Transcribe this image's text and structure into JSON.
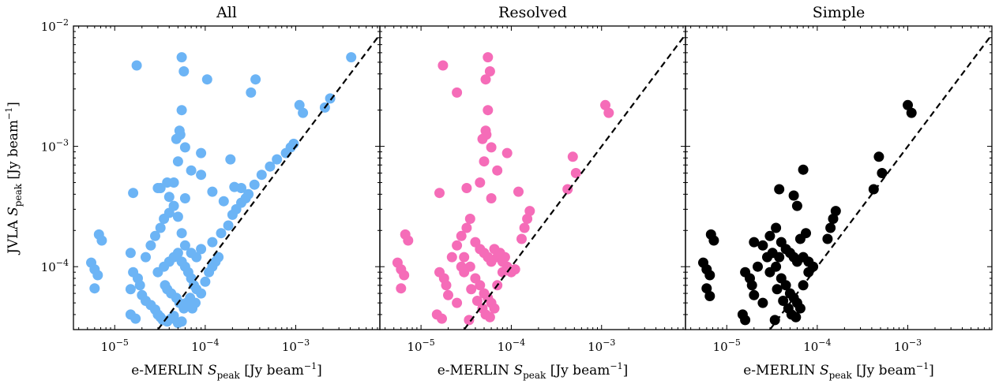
{
  "figure": {
    "x_label": {
      "prefix": "e-MERLIN ",
      "var": "S",
      "sub": "peak",
      "units": " [Jy beam",
      "exp": "−1",
      "close": "]"
    },
    "y_label": {
      "prefix": "JVLA ",
      "var": "S",
      "sub": "peak",
      "units": " [Jy beam",
      "exp": "−1",
      "close": "]"
    },
    "x_ticks": [
      {
        "value": 1e-05,
        "base": "10",
        "exp": "−5"
      },
      {
        "value": 0.0001,
        "base": "10",
        "exp": "−4"
      },
      {
        "value": 0.001,
        "base": "10",
        "exp": "−3"
      }
    ],
    "y_ticks": [
      {
        "value": 0.0001,
        "base": "10",
        "exp": "−4"
      },
      {
        "value": 0.001,
        "base": "10",
        "exp": "−3"
      },
      {
        "value": 0.01,
        "base": "10",
        "exp": "−2"
      }
    ]
  },
  "chart_data": [
    {
      "type": "scatter",
      "title": "All",
      "color": "#6cb4f5",
      "x_scale": "log",
      "y_scale": "log",
      "xlim": [
        3.5e-06,
        0.0085
      ],
      "ylim": [
        3e-05,
        0.01
      ],
      "reference_line": "y = x",
      "points": [
        [
          1.75e-05,
          0.0047
        ],
        [
          5.5e-05,
          0.0055
        ],
        [
          5.8e-05,
          0.0042
        ],
        [
          0.000105,
          0.0036
        ],
        [
          0.00036,
          0.0036
        ],
        [
          0.00032,
          0.0028
        ],
        [
          0.0041,
          0.0055
        ],
        [
          0.0024,
          0.0025
        ],
        [
          0.0011,
          0.0022
        ],
        [
          0.0012,
          0.0019
        ],
        [
          0.0021,
          0.0021
        ],
        [
          5.5e-05,
          0.002
        ],
        [
          5.2e-05,
          0.00135
        ],
        [
          5.3e-05,
          0.00125
        ],
        [
          4.8e-05,
          0.00115
        ],
        [
          6e-05,
          0.00098
        ],
        [
          9e-05,
          0.00088
        ],
        [
          0.00019,
          0.00078
        ],
        [
          0.00095,
          0.00105
        ],
        [
          0.00088,
          0.00098
        ],
        [
          0.00078,
          0.00088
        ],
        [
          0.00062,
          0.00078
        ],
        [
          0.00052,
          0.00068
        ],
        [
          5e-05,
          0.00075
        ],
        [
          7e-05,
          0.00063
        ],
        [
          9e-05,
          0.00058
        ],
        [
          0.00042,
          0.00058
        ],
        [
          0.00035,
          0.00048
        ],
        [
          0.00025,
          0.00045
        ],
        [
          0.00021,
          0.00046
        ],
        [
          0.00016,
          0.00035
        ],
        [
          0.00012,
          0.00042
        ],
        [
          3.8e-05,
          0.0005
        ],
        [
          4.5e-05,
          0.0005
        ],
        [
          3.2e-05,
          0.00045
        ],
        [
          1.6e-05,
          0.00041
        ],
        [
          4e-05,
          0.00038
        ],
        [
          6e-05,
          0.00037
        ],
        [
          3e-05,
          0.00045
        ],
        [
          6.7e-06,
          0.000185
        ],
        [
          7.2e-06,
          0.000165
        ],
        [
          5.5e-06,
          0.000108
        ],
        [
          6e-06,
          9.5e-05
        ],
        [
          6.5e-06,
          8.5e-05
        ],
        [
          6e-06,
          6.6e-05
        ],
        [
          1.5e-05,
          0.00013
        ],
        [
          2.2e-05,
          0.00012
        ],
        [
          2.5e-05,
          0.00015
        ],
        [
          2.8e-05,
          0.00018
        ],
        [
          3.2e-05,
          0.00021
        ],
        [
          3.5e-05,
          0.00025
        ],
        [
          4e-05,
          0.00028
        ],
        [
          4.5e-05,
          0.00032
        ],
        [
          5e-05,
          0.00026
        ],
        [
          5.5e-05,
          0.00019
        ],
        [
          6e-05,
          0.00015
        ],
        [
          7e-05,
          0.00013
        ],
        [
          8e-05,
          0.00012
        ],
        [
          9e-05,
          0.00014
        ],
        [
          0.00012,
          0.00016
        ],
        [
          0.00015,
          0.00019
        ],
        [
          0.00018,
          0.00022
        ],
        [
          0.0002,
          0.00027
        ],
        [
          0.00022,
          0.0003
        ],
        [
          0.00025,
          0.00034
        ],
        [
          0.00028,
          0.00037
        ],
        [
          0.0003,
          0.0004
        ],
        [
          1.6e-05,
          9e-05
        ],
        [
          1.8e-05,
          8e-05
        ],
        [
          1.9e-05,
          7e-05
        ],
        [
          1.5e-05,
          6.5e-05
        ],
        [
          2e-05,
          5.8e-05
        ],
        [
          2.2e-05,
          5.2e-05
        ],
        [
          2.5e-05,
          4.8e-05
        ],
        [
          2.8e-05,
          4.4e-05
        ],
        [
          3e-05,
          4e-05
        ],
        [
          3.2e-05,
          3.8e-05
        ],
        [
          3.4e-05,
          3.6e-05
        ],
        [
          3.8e-05,
          3.5e-05
        ],
        [
          4.2e-05,
          3.7e-05
        ],
        [
          4.5e-05,
          3.9e-05
        ],
        [
          5e-05,
          3.4e-05
        ],
        [
          5.5e-05,
          3.5e-05
        ],
        [
          1.5e-05,
          4e-05
        ],
        [
          1.7e-05,
          3.7e-05
        ],
        [
          3e-05,
          9e-05
        ],
        [
          3.5e-05,
          0.0001
        ],
        [
          4e-05,
          0.00011
        ],
        [
          4.5e-05,
          0.00012
        ],
        [
          5e-05,
          0.00013
        ],
        [
          5.5e-05,
          0.00011
        ],
        [
          6e-05,
          0.0001
        ],
        [
          6.5e-05,
          9e-05
        ],
        [
          7e-05,
          8e-05
        ],
        [
          7.5e-05,
          7e-05
        ],
        [
          8e-05,
          6.5e-05
        ],
        [
          9e-05,
          6e-05
        ],
        [
          0.0001,
          7.5e-05
        ],
        [
          0.00011,
          9e-05
        ],
        [
          0.00012,
          0.0001
        ],
        [
          0.00013,
          0.00011
        ],
        [
          0.00014,
          0.00012
        ],
        [
          3.6e-05,
          7e-05
        ],
        [
          3.8e-05,
          6.5e-05
        ],
        [
          4.2e-05,
          6e-05
        ],
        [
          4.8e-05,
          5.5e-05
        ],
        [
          5.2e-05,
          5e-05
        ],
        [
          5.8e-05,
          4.5e-05
        ],
        [
          6.2e-05,
          5e-05
        ],
        [
          6.8e-05,
          5.5e-05
        ],
        [
          7.2e-05,
          4.5e-05
        ],
        [
          7.8e-05,
          5e-05
        ]
      ]
    },
    {
      "type": "scatter",
      "title": "Resolved",
      "color": "#f56cb8",
      "x_scale": "log",
      "y_scale": "log",
      "xlim": [
        3.5e-06,
        0.0085
      ],
      "ylim": [
        3e-05,
        0.01
      ],
      "reference_line": "y = x",
      "points": [
        [
          1.75e-05,
          0.0047
        ],
        [
          5.5e-05,
          0.0055
        ],
        [
          5.8e-05,
          0.0042
        ],
        [
          5.2e-05,
          0.0036
        ],
        [
          2.5e-05,
          0.0028
        ],
        [
          0.0011,
          0.0022
        ],
        [
          0.0012,
          0.0019
        ],
        [
          5.5e-05,
          0.002
        ],
        [
          5.2e-05,
          0.00135
        ],
        [
          5.3e-05,
          0.00125
        ],
        [
          4.8e-05,
          0.00115
        ],
        [
          6e-05,
          0.00098
        ],
        [
          9e-05,
          0.00088
        ],
        [
          0.00048,
          0.00082
        ],
        [
          0.00052,
          0.0006
        ],
        [
          0.00042,
          0.00044
        ],
        [
          0.00012,
          0.00042
        ],
        [
          5e-05,
          0.00075
        ],
        [
          7e-05,
          0.00063
        ],
        [
          4.5e-05,
          0.0005
        ],
        [
          3.2e-05,
          0.00045
        ],
        [
          1.6e-05,
          0.00041
        ],
        [
          6e-05,
          0.00037
        ],
        [
          0.00016,
          0.00029
        ],
        [
          0.00015,
          0.00025
        ],
        [
          0.00014,
          0.00021
        ],
        [
          0.00013,
          0.00017
        ],
        [
          6.7e-06,
          0.000185
        ],
        [
          7.2e-06,
          0.000165
        ],
        [
          5.5e-06,
          0.000108
        ],
        [
          6e-06,
          9.5e-05
        ],
        [
          6.5e-06,
          8.5e-05
        ],
        [
          6e-06,
          6.6e-05
        ],
        [
          2.5e-05,
          0.00015
        ],
        [
          2.2e-05,
          0.00012
        ],
        [
          2.8e-05,
          0.00018
        ],
        [
          3.2e-05,
          0.00021
        ],
        [
          3.5e-05,
          0.00025
        ],
        [
          4e-05,
          0.00016
        ],
        [
          4.5e-05,
          0.00014
        ],
        [
          5e-05,
          0.00013
        ],
        [
          5.5e-05,
          0.00012
        ],
        [
          6e-05,
          0.00011
        ],
        [
          7e-05,
          0.00012
        ],
        [
          8e-05,
          0.00011
        ],
        [
          9e-05,
          0.0001
        ],
        [
          0.0001,
          9e-05
        ],
        [
          0.00011,
          9.5e-05
        ],
        [
          1.6e-05,
          9e-05
        ],
        [
          1.8e-05,
          8e-05
        ],
        [
          1.9e-05,
          7e-05
        ],
        [
          1.5e-05,
          4e-05
        ],
        [
          1.7e-05,
          3.7e-05
        ],
        [
          2e-05,
          5.8e-05
        ],
        [
          2.5e-05,
          5e-05
        ],
        [
          3e-05,
          9e-05
        ],
        [
          3.5e-05,
          0.0001
        ],
        [
          4e-05,
          8e-05
        ],
        [
          4.5e-05,
          7e-05
        ],
        [
          5e-05,
          6e-05
        ],
        [
          5.5e-05,
          5.5e-05
        ],
        [
          6e-05,
          5e-05
        ],
        [
          6.5e-05,
          4.5e-05
        ],
        [
          7e-05,
          7e-05
        ],
        [
          8e-05,
          9e-05
        ],
        [
          3.6e-05,
          6.5e-05
        ],
        [
          4.2e-05,
          5.2e-05
        ],
        [
          4.8e-05,
          4.5e-05
        ],
        [
          5.2e-05,
          4e-05
        ],
        [
          5.8e-05,
          3.8e-05
        ],
        [
          3.4e-05,
          3.6e-05
        ],
        [
          9e-05,
          9.5e-05
        ],
        [
          8.5e-05,
          0.00012
        ],
        [
          7.5e-05,
          0.00013
        ],
        [
          6.5e-05,
          0.00014
        ],
        [
          3e-05,
          0.00012
        ],
        [
          2.8e-05,
          0.0001
        ]
      ]
    },
    {
      "type": "scatter",
      "title": "Simple",
      "color": "#000000",
      "x_scale": "log",
      "y_scale": "log",
      "xlim": [
        3.5e-06,
        0.0085
      ],
      "ylim": [
        3e-05,
        0.01
      ],
      "reference_line": "y = x",
      "points": [
        [
          0.001,
          0.0022
        ],
        [
          0.0011,
          0.0019
        ],
        [
          0.00048,
          0.00082
        ],
        [
          0.00052,
          0.0006
        ],
        [
          0.00042,
          0.00044
        ],
        [
          7e-05,
          0.00064
        ],
        [
          3.8e-05,
          0.00044
        ],
        [
          5.5e-05,
          0.00039
        ],
        [
          6e-05,
          0.00032
        ],
        [
          0.00016,
          0.00029
        ],
        [
          0.00015,
          0.00025
        ],
        [
          0.00014,
          0.00021
        ],
        [
          0.00013,
          0.00017
        ],
        [
          6.7e-06,
          0.000185
        ],
        [
          7.2e-06,
          0.000165
        ],
        [
          5.5e-06,
          0.000108
        ],
        [
          6e-06,
          9.5e-05
        ],
        [
          6.5e-06,
          8.5e-05
        ],
        [
          6e-06,
          6.6e-05
        ],
        [
          6.5e-06,
          5.7e-05
        ],
        [
          2e-05,
          0.00016
        ],
        [
          2.5e-05,
          0.00015
        ],
        [
          3e-05,
          0.00018
        ],
        [
          3.5e-05,
          0.00021
        ],
        [
          4e-05,
          0.00016
        ],
        [
          4.5e-05,
          0.00014
        ],
        [
          5e-05,
          0.00013
        ],
        [
          5.5e-05,
          0.00012
        ],
        [
          6e-05,
          0.00011
        ],
        [
          7e-05,
          0.00012
        ],
        [
          8e-05,
          0.00011
        ],
        [
          9e-05,
          0.0001
        ],
        [
          7.5e-05,
          0.00019
        ],
        [
          6.5e-05,
          0.00017
        ],
        [
          1.6e-05,
          9e-05
        ],
        [
          1.8e-05,
          8e-05
        ],
        [
          1.9e-05,
          7e-05
        ],
        [
          1.5e-05,
          4e-05
        ],
        [
          1.6e-05,
          3.6e-05
        ],
        [
          2e-05,
          5.8e-05
        ],
        [
          2.2e-05,
          0.0001
        ],
        [
          2.5e-05,
          5e-05
        ],
        [
          3e-05,
          9e-05
        ],
        [
          3.5e-05,
          0.0001
        ],
        [
          4e-05,
          8e-05
        ],
        [
          4.5e-05,
          7e-05
        ],
        [
          5e-05,
          6e-05
        ],
        [
          5.5e-05,
          5.5e-05
        ],
        [
          6e-05,
          5e-05
        ],
        [
          6.5e-05,
          4.5e-05
        ],
        [
          7e-05,
          7e-05
        ],
        [
          8e-05,
          9e-05
        ],
        [
          3.6e-05,
          6.5e-05
        ],
        [
          4.2e-05,
          5.2e-05
        ],
        [
          4.8e-05,
          4.5e-05
        ],
        [
          5.2e-05,
          4e-05
        ],
        [
          5.8e-05,
          3.8e-05
        ],
        [
          3.4e-05,
          3.6e-05
        ],
        [
          2.8e-05,
          0.00012
        ],
        [
          3.2e-05,
          0.00013
        ],
        [
          3.8e-05,
          0.00012
        ]
      ]
    }
  ]
}
